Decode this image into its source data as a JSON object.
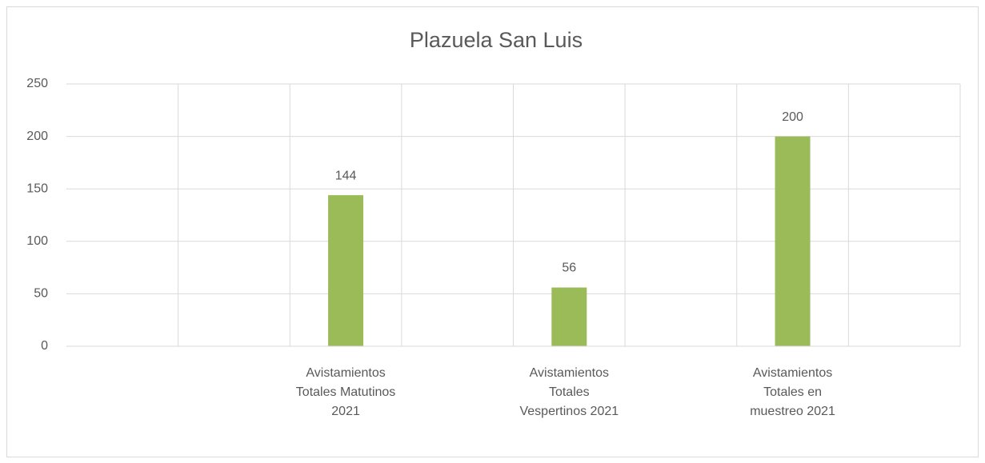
{
  "chart_data": {
    "type": "bar",
    "title": "Plazuela San Luis",
    "categories": [
      null,
      null,
      "Avistamientos Totales Matutinos 2021",
      null,
      "Avistamientos Totales Vespertinos 2021",
      null,
      "Avistamientos Totales en muestreo 2021",
      null
    ],
    "values": [
      null,
      null,
      144,
      null,
      56,
      null,
      200,
      null
    ],
    "color": "#9bbb59",
    "ylim": [
      0,
      250
    ],
    "yticks": [
      0,
      50,
      100,
      150,
      200,
      250
    ],
    "grid": true
  }
}
